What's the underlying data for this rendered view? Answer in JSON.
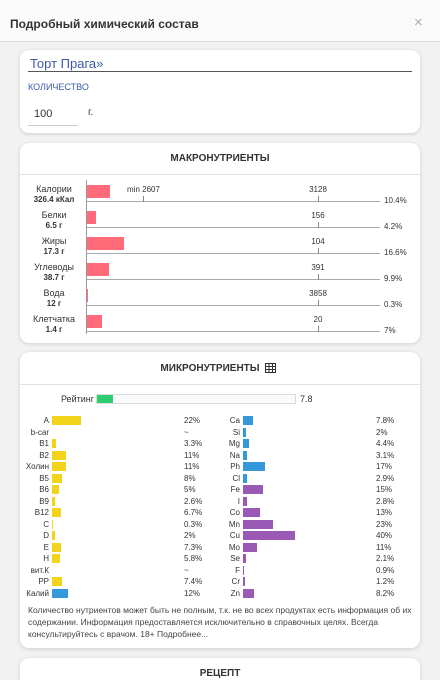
{
  "header": {
    "title": "Подробный химический состав",
    "close": "×"
  },
  "product": {
    "name": "Торт Прага»",
    "quantity_label": "КОЛИЧЕСТВО",
    "quantity": 100,
    "unit": "г."
  },
  "macro": {
    "title": "МАКРОНУТРИЕНТЫ",
    "color": "#ff6b78",
    "rows": [
      {
        "name": "Калории",
        "amount": "326.4 кКал",
        "min_label": "min 2607",
        "norm": 3128,
        "percent": 10.4,
        "percent_label": "10.4%"
      },
      {
        "name": "Белки",
        "amount": "6.5 г",
        "norm": 156,
        "percent": 4.2,
        "percent_label": "4.2%"
      },
      {
        "name": "Жиры",
        "amount": "17.3 г",
        "norm": 104,
        "percent": 16.6,
        "percent_label": "16.6%"
      },
      {
        "name": "Углеводы",
        "amount": "38.7 г",
        "norm": 391,
        "percent": 9.9,
        "percent_label": "9.9%"
      },
      {
        "name": "Вода",
        "amount": "12 г",
        "norm": 3858,
        "percent": 0.3,
        "percent_label": "0.3%"
      },
      {
        "name": "Клетчатка",
        "amount": "1.4 г",
        "norm": 20,
        "percent": 7,
        "percent_label": "7%"
      }
    ]
  },
  "micro": {
    "title": "МИКРОНУТРИЕНТЫ",
    "rating_label": "Рейтинг",
    "rating": 7.8,
    "rating_color": "#2ecc71",
    "vitamins": [
      {
        "name": "A",
        "percent": 22,
        "percent_label": "22%",
        "color": "#f2d41a"
      },
      {
        "name": "b-car",
        "percent": null,
        "percent_label": "~",
        "color": "#f2d41a"
      },
      {
        "name": "B1",
        "percent": 3.3,
        "percent_label": "3.3%",
        "color": "#f2d41a"
      },
      {
        "name": "B2",
        "percent": 11,
        "percent_label": "11%",
        "color": "#f2d41a"
      },
      {
        "name": "Холин",
        "percent": 11,
        "percent_label": "11%",
        "color": "#f2d41a"
      },
      {
        "name": "B5",
        "percent": 8,
        "percent_label": "8%",
        "color": "#f2d41a"
      },
      {
        "name": "B6",
        "percent": 5,
        "percent_label": "5%",
        "color": "#f2d41a"
      },
      {
        "name": "B9",
        "percent": 2.6,
        "percent_label": "2.6%",
        "color": "#f2d41a"
      },
      {
        "name": "B12",
        "percent": 6.7,
        "percent_label": "6.7%",
        "color": "#f2d41a"
      },
      {
        "name": "C",
        "percent": 0.3,
        "percent_label": "0.3%",
        "color": "#f2d41a"
      },
      {
        "name": "D",
        "percent": 2,
        "percent_label": "2%",
        "color": "#f2d41a"
      },
      {
        "name": "E",
        "percent": 7.3,
        "percent_label": "7.3%",
        "color": "#f2d41a"
      },
      {
        "name": "H",
        "percent": 5.8,
        "percent_label": "5.8%",
        "color": "#f2d41a"
      },
      {
        "name": "вит.К",
        "percent": null,
        "percent_label": "~",
        "color": "#f2d41a"
      },
      {
        "name": "PP",
        "percent": 7.4,
        "percent_label": "7.4%",
        "color": "#f2d41a"
      },
      {
        "name": "Калий",
        "percent": 12,
        "percent_label": "12%",
        "color": "#3498db"
      }
    ],
    "minerals": [
      {
        "name": "Ca",
        "percent": 7.8,
        "percent_label": "7.8%",
        "color": "#3498db"
      },
      {
        "name": "Si",
        "percent": 2,
        "percent_label": "2%",
        "color": "#3498db"
      },
      {
        "name": "Mg",
        "percent": 4.4,
        "percent_label": "4.4%",
        "color": "#3498db"
      },
      {
        "name": "Na",
        "percent": 3.1,
        "percent_label": "3.1%",
        "color": "#3498db"
      },
      {
        "name": "Ph",
        "percent": 17,
        "percent_label": "17%",
        "color": "#3498db"
      },
      {
        "name": "Cl",
        "percent": 2.9,
        "percent_label": "2.9%",
        "color": "#3498db"
      },
      {
        "name": "Fe",
        "percent": 15,
        "percent_label": "15%",
        "color": "#9b59b6"
      },
      {
        "name": "I",
        "percent": 2.8,
        "percent_label": "2.8%",
        "color": "#9b59b6"
      },
      {
        "name": "Co",
        "percent": 13,
        "percent_label": "13%",
        "color": "#9b59b6"
      },
      {
        "name": "Mn",
        "percent": 23,
        "percent_label": "23%",
        "color": "#9b59b6"
      },
      {
        "name": "Cu",
        "percent": 40,
        "percent_label": "40%",
        "color": "#9b59b6"
      },
      {
        "name": "Mo",
        "percent": 11,
        "percent_label": "11%",
        "color": "#9b59b6"
      },
      {
        "name": "Se",
        "percent": 2.1,
        "percent_label": "2.1%",
        "color": "#9b59b6"
      },
      {
        "name": "F",
        "percent": 0.9,
        "percent_label": "0.9%",
        "color": "#9b59b6"
      },
      {
        "name": "Cr",
        "percent": 1.2,
        "percent_label": "1.2%",
        "color": "#9b59b6"
      },
      {
        "name": "Zn",
        "percent": 8.2,
        "percent_label": "8.2%",
        "color": "#9b59b6"
      }
    ]
  },
  "note": "Количество нутриентов может быть не полным, т.к. не во всех продуктах есть информация об их содержании. Информация предоставляется исключительно в справочных целях. Всегда консультируйтесь с врачом. 18+ Подробнее...",
  "recipe": {
    "title": "РЕЦЕПТ"
  }
}
